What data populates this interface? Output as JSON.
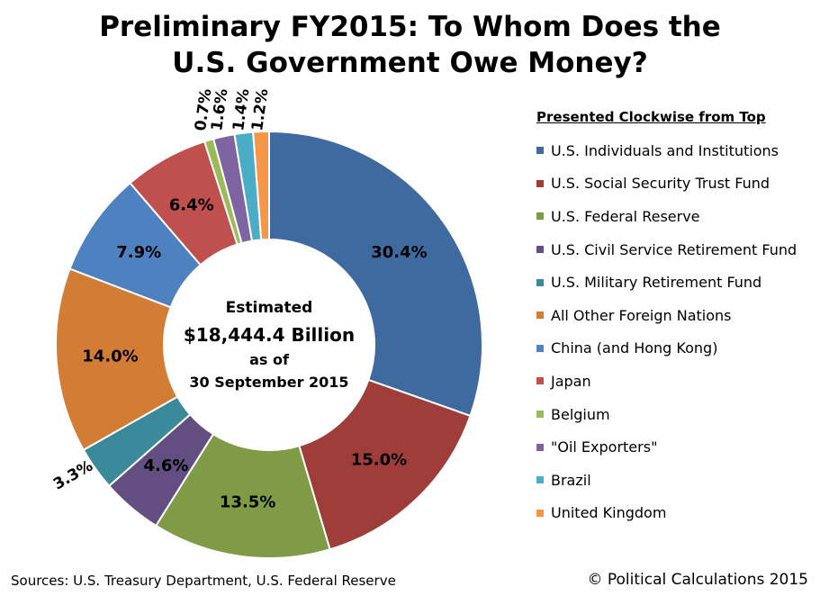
{
  "chart_data": {
    "type": "pie",
    "title": "Preliminary FY2015: To Whom Does the U.S. Government Owe Money?",
    "legend_title": "Presented Clockwise from Top",
    "legend_placement": "right",
    "center_label": {
      "line1": "Estimated",
      "line2": "$18,444.4 Billion",
      "line3": "as of",
      "line4": "30 September 2015"
    },
    "slices": [
      {
        "label": "U.S. Individuals and Institutions",
        "value": 30.4,
        "display": "30.4%",
        "color": "#3f6aa0"
      },
      {
        "label": "U.S. Social Security Trust Fund",
        "value": 15.0,
        "display": "15.0%",
        "color": "#9e3d3a"
      },
      {
        "label": "U.S. Federal Reserve",
        "value": 13.5,
        "display": "13.5%",
        "color": "#7f9b45"
      },
      {
        "label": "U.S. Civil Service Retirement Fund",
        "value": 4.6,
        "display": "4.6%",
        "color": "#624e80"
      },
      {
        "label": "U.S. Military Retirement Fund",
        "value": 3.3,
        "display": "3.3%",
        "color": "#3a8a9b"
      },
      {
        "label": "All Other Foreign Nations",
        "value": 14.0,
        "display": "14.0%",
        "color": "#d27c35"
      },
      {
        "label": "China (and Hong Kong)",
        "value": 7.9,
        "display": "7.9%",
        "color": "#4d81c0"
      },
      {
        "label": "Japan",
        "value": 6.4,
        "display": "6.4%",
        "color": "#c0504d"
      },
      {
        "label": "Belgium",
        "value": 0.7,
        "display": "0.7%",
        "color": "#9bbb59"
      },
      {
        "label": "\"Oil Exporters\"",
        "value": 1.6,
        "display": "1.6%",
        "color": "#7f64a2"
      },
      {
        "label": "Brazil",
        "value": 1.4,
        "display": "1.4%",
        "color": "#4bacc6"
      },
      {
        "label": "United Kingdom",
        "value": 1.2,
        "display": "1.2%",
        "color": "#f79646"
      }
    ]
  },
  "header": {
    "title_line1": "Preliminary FY2015: To Whom Does the",
    "title_line2": "U.S. Government Owe Money?"
  },
  "footer": {
    "sources": "Sources:  U.S. Treasury Department, U.S. Federal Reserve",
    "copyright": "© Political Calculations 2015"
  }
}
